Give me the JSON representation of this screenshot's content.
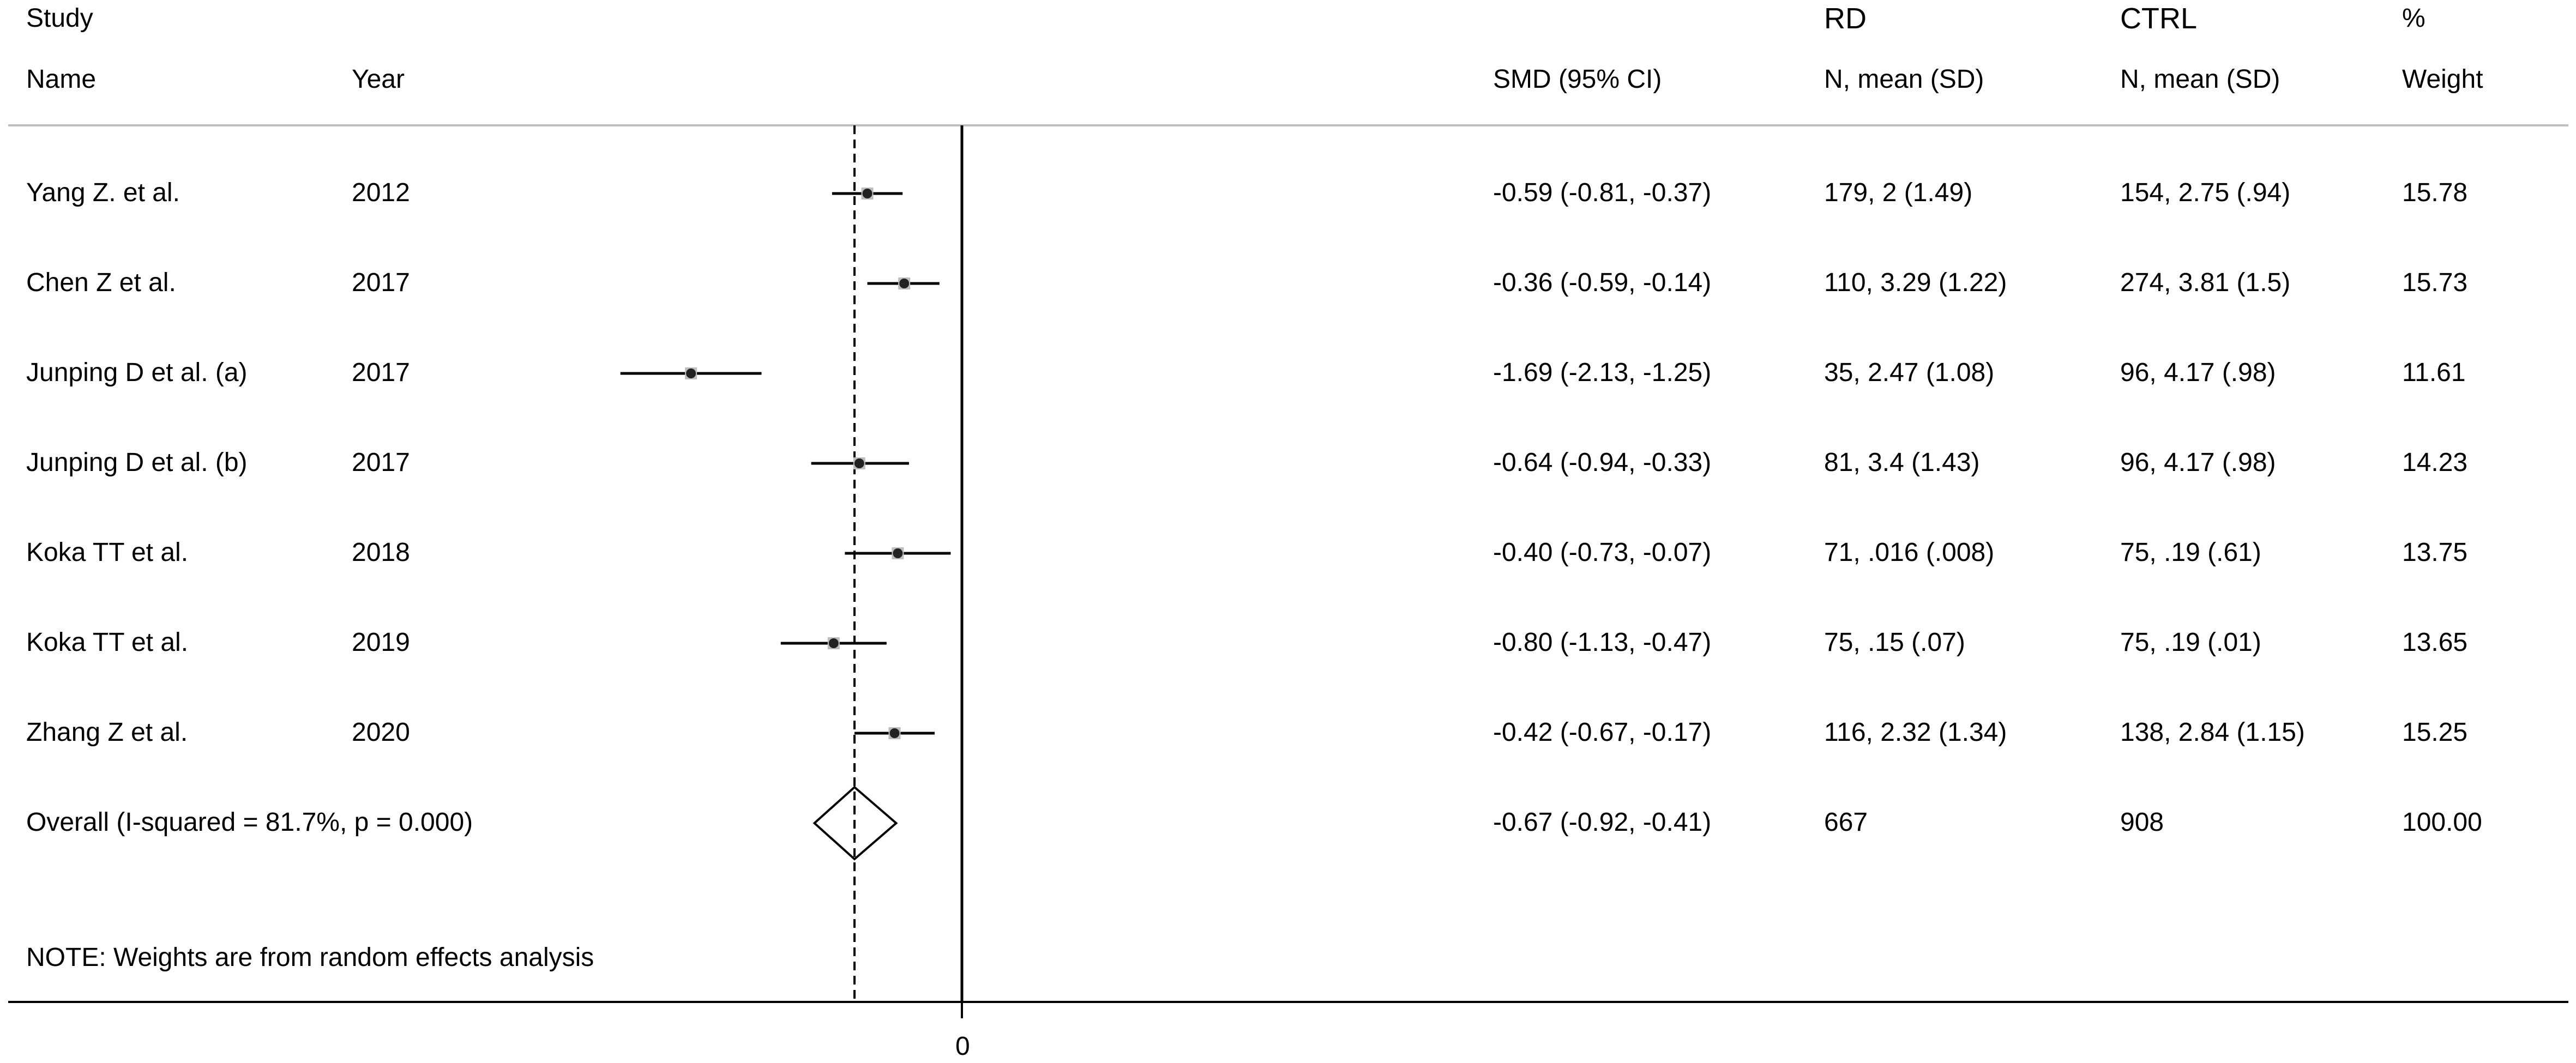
{
  "chart_data": {
    "type": "forest",
    "headers": {
      "study": "Study",
      "name": "Name",
      "year": "Year",
      "smd": "SMD (95% CI)",
      "rd_group": "RD",
      "rd_sub": "N, mean (SD)",
      "ctrl_group": "CTRL",
      "ctrl_sub": "N, mean (SD)",
      "weight_group": "%",
      "weight_sub": "Weight"
    },
    "studies": [
      {
        "name": "Yang Z. et al.",
        "year": "2012",
        "smd": -0.59,
        "lo": -0.81,
        "hi": -0.37,
        "ci_text": "-0.59 (-0.81, -0.37)",
        "rd": "179, 2 (1.49)",
        "ctrl": "154, 2.75 (.94)",
        "weight": "15.78"
      },
      {
        "name": "Chen Z et al.",
        "year": "2017",
        "smd": -0.36,
        "lo": -0.59,
        "hi": -0.14,
        "ci_text": "-0.36 (-0.59, -0.14)",
        "rd": "110, 3.29 (1.22)",
        "ctrl": "274, 3.81 (1.5)",
        "weight": "15.73"
      },
      {
        "name": "Junping D et al. (a)",
        "year": "2017",
        "smd": -1.69,
        "lo": -2.13,
        "hi": -1.25,
        "ci_text": "-1.69 (-2.13, -1.25)",
        "rd": "35, 2.47 (1.08)",
        "ctrl": "96, 4.17 (.98)",
        "weight": "11.61"
      },
      {
        "name": "Junping D et al. (b)",
        "year": "2017",
        "smd": -0.64,
        "lo": -0.94,
        "hi": -0.33,
        "ci_text": "-0.64 (-0.94, -0.33)",
        "rd": "81, 3.4 (1.43)",
        "ctrl": "96, 4.17 (.98)",
        "weight": "14.23"
      },
      {
        "name": "Koka TT et al.",
        "year": "2018",
        "smd": -0.4,
        "lo": -0.73,
        "hi": -0.07,
        "ci_text": "-0.40 (-0.73, -0.07)",
        "rd": "71, .016 (.008)",
        "ctrl": "75, .19 (.61)",
        "weight": "13.75"
      },
      {
        "name": "Koka TT et al.",
        "year": "2019",
        "smd": -0.8,
        "lo": -1.13,
        "hi": -0.47,
        "ci_text": "-0.80 (-1.13, -0.47)",
        "rd": "75, .15 (.07)",
        "ctrl": "75, .19 (.01)",
        "weight": "13.65"
      },
      {
        "name": "Zhang Z et al.",
        "year": "2020",
        "smd": -0.42,
        "lo": -0.67,
        "hi": -0.17,
        "ci_text": "-0.42 (-0.67, -0.17)",
        "rd": "116, 2.32 (1.34)",
        "ctrl": "138, 2.84 (1.15)",
        "weight": "15.25"
      }
    ],
    "overall": {
      "label": "Overall  (I-squared = 81.7%, p = 0.000)",
      "smd": -0.67,
      "lo": -0.92,
      "hi": -0.41,
      "ci_text": "-0.67 (-0.92, -0.41)",
      "rd": "667",
      "ctrl": "908",
      "weight": "100.00"
    },
    "note": "NOTE: Weights are from random effects analysis",
    "xaxis": {
      "ticks": [
        0
      ],
      "tick_labels": [
        "0"
      ],
      "range": [
        -2.13,
        0.0
      ]
    },
    "reference_line": 0,
    "overall_dashed_line": -0.67,
    "colors": {
      "line": "#000000",
      "marker": "#222222",
      "marker_box": "#bdbdbd",
      "rule": "#bfbfbf"
    }
  }
}
